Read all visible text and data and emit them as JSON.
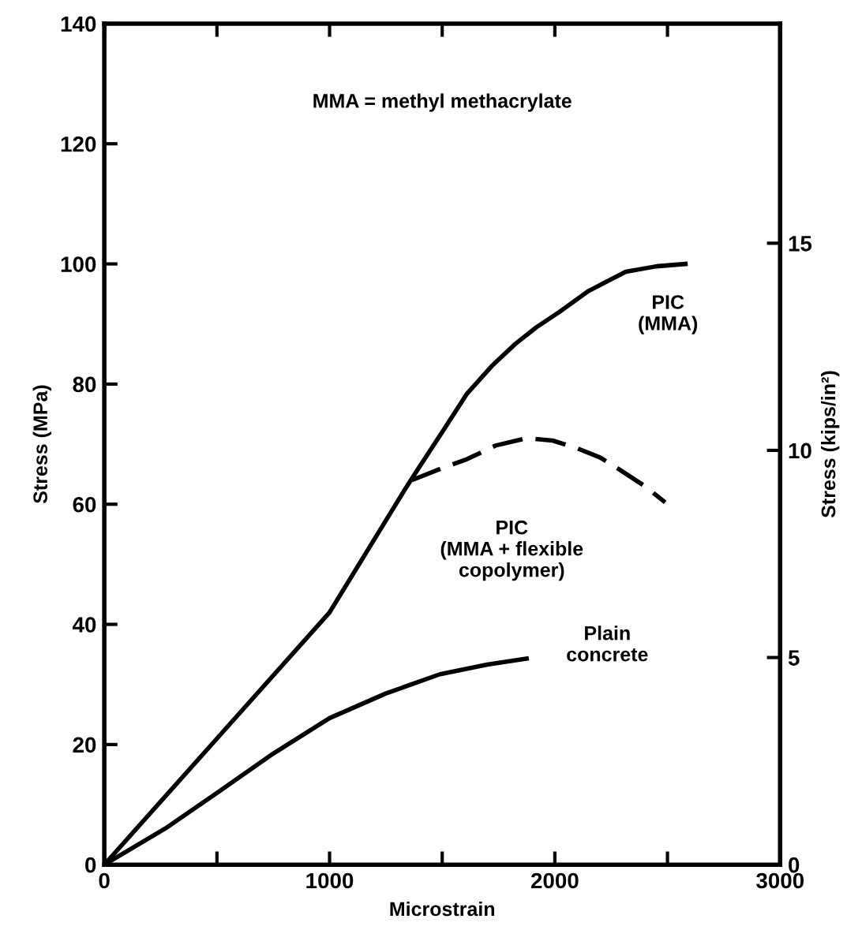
{
  "chart_data": {
    "type": "line",
    "xlabel": "Microstrain",
    "ylabel": "Stress (MPa)",
    "y2label": "Stress (kips/in²)",
    "annotations": [
      "MMA = methyl methacrylate"
    ],
    "xlim": [
      0,
      3000
    ],
    "xticks": [
      0,
      {
        "value": 500,
        "label": null
      },
      1000,
      {
        "value": 1500,
        "label": null
      },
      2000,
      {
        "value": 2500,
        "label": null
      },
      3000
    ],
    "ylim": [
      0,
      140
    ],
    "yticks": [
      0,
      20,
      40,
      60,
      80,
      100,
      120,
      140
    ],
    "y2lim": [
      0,
      20.3
    ],
    "y2ticks": [
      0,
      5,
      10,
      15
    ],
    "grid": false,
    "legend": false,
    "marker": "none",
    "series": [
      {
        "name": "PIC\n(MMA)",
        "color": "#000000",
        "line_style": "solid",
        "x": [
          0,
          500,
          1000,
          1340,
          1390,
          1500,
          1610,
          1720,
          1825,
          1920,
          2020,
          2150,
          2315,
          2450,
          2580
        ],
        "values": [
          0,
          21,
          42,
          62.8,
          65.7,
          72,
          78.4,
          83,
          86.7,
          89.5,
          92,
          95.5,
          98.7,
          99.6,
          100
        ]
      },
      {
        "name": "PIC\n(MMA + flexible\ncopolymer)",
        "color": "#000000",
        "line_style": "dashed",
        "x": [
          1365,
          1500,
          1610,
          1740,
          1875,
          1990,
          2100,
          2200,
          2290,
          2400,
          2490
        ],
        "values": [
          64,
          66,
          67.5,
          69.8,
          71,
          70.6,
          69.3,
          67.8,
          65.7,
          63,
          60.3
        ]
      },
      {
        "name": "Plain\nconcrete",
        "color": "#000000",
        "line_style": "solid",
        "x": [
          0,
          270,
          510,
          750,
          1000,
          1250,
          1490,
          1700,
          1875
        ],
        "values": [
          0,
          6,
          12.2,
          18.5,
          24.4,
          28.5,
          31.7,
          33.3,
          34.3
        ]
      }
    ]
  }
}
